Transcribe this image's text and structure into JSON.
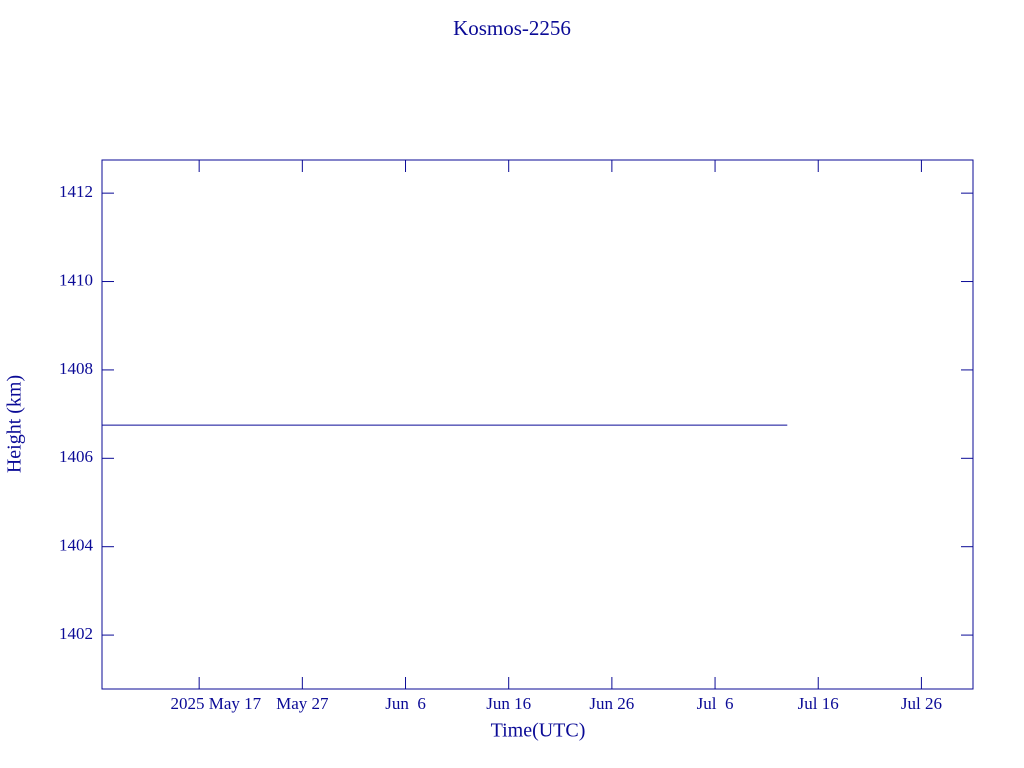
{
  "chart_data": {
    "type": "line",
    "title": "Kosmos-2256",
    "x_label": "Time(UTC)",
    "y_label": "Height (km)",
    "x": [
      "2025-05-07T14:00",
      "2025-07-13T00:00"
    ],
    "series": [
      {
        "name": "Kosmos-2256",
        "color": "#0a0a96",
        "values": [
          1406.75,
          1406.75
        ]
      }
    ],
    "xlim": [
      "2025-05-07T14:00",
      "2025-07-31T00:00"
    ],
    "xticks": [
      {
        "value": "2025-05-17T00:00",
        "label": "2025 May 17"
      },
      {
        "value": "2025-05-27T00:00",
        "label": "May 27"
      },
      {
        "value": "2025-06-06T00:00",
        "label": "Jun  6"
      },
      {
        "value": "2025-06-16T00:00",
        "label": "Jun 16"
      },
      {
        "value": "2025-06-26T00:00",
        "label": "Jun 26"
      },
      {
        "value": "2025-07-06T00:00",
        "label": "Jul  6"
      },
      {
        "value": "2025-07-16T00:00",
        "label": "Jul 16"
      },
      {
        "value": "2025-07-26T00:00",
        "label": "Jul 26"
      }
    ],
    "ylim": [
      1400.78,
      1412.75
    ],
    "yticks": [
      1402,
      1404,
      1406,
      1408,
      1410,
      1412
    ],
    "grid": false
  }
}
